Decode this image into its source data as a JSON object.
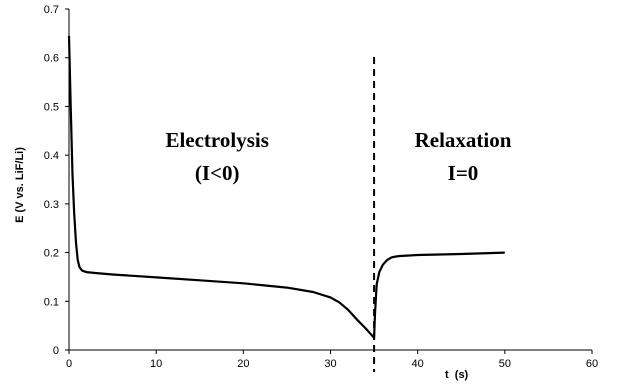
{
  "chart_data": {
    "type": "line",
    "title": "",
    "xlabel": "t  (s)",
    "ylabel": "E (V vs. LiF/Li)",
    "xlim": [
      0,
      60
    ],
    "ylim": [
      0,
      0.7
    ],
    "x_ticks": [
      "0",
      "10",
      "20",
      "30",
      "40",
      "50",
      "60"
    ],
    "y_ticks": [
      "0",
      "0.1",
      "0.2",
      "0.3",
      "0.4",
      "0.5",
      "0.6",
      "0.7"
    ],
    "grid": false,
    "legend": "none",
    "series": [
      {
        "color": "#000000",
        "x": [
          0,
          0.2,
          0.4,
          0.6,
          0.8,
          1.0,
          1.2,
          1.5,
          2,
          3,
          5,
          10,
          15,
          20,
          25,
          28,
          30,
          31,
          32,
          33,
          34,
          35,
          35.1,
          35.3,
          35.6,
          36,
          36.5,
          37,
          37.5,
          38,
          40,
          45,
          50
        ],
        "y": [
          0.645,
          0.5,
          0.36,
          0.28,
          0.22,
          0.185,
          0.17,
          0.163,
          0.16,
          0.158,
          0.155,
          0.149,
          0.143,
          0.137,
          0.128,
          0.119,
          0.108,
          0.098,
          0.083,
          0.063,
          0.045,
          0.025,
          0.075,
          0.135,
          0.16,
          0.175,
          0.185,
          0.19,
          0.192,
          0.193,
          0.195,
          0.197,
          0.2
        ]
      }
    ],
    "vertical_line": {
      "x": 35,
      "style": "dashed"
    },
    "annotations": [
      {
        "lines": [
          "Electrolysis",
          "(I<0)"
        ],
        "x": 17,
        "y": 0.4
      },
      {
        "lines": [
          "Relaxation",
          "I=0"
        ],
        "x": 45.2,
        "y": 0.4
      }
    ]
  }
}
